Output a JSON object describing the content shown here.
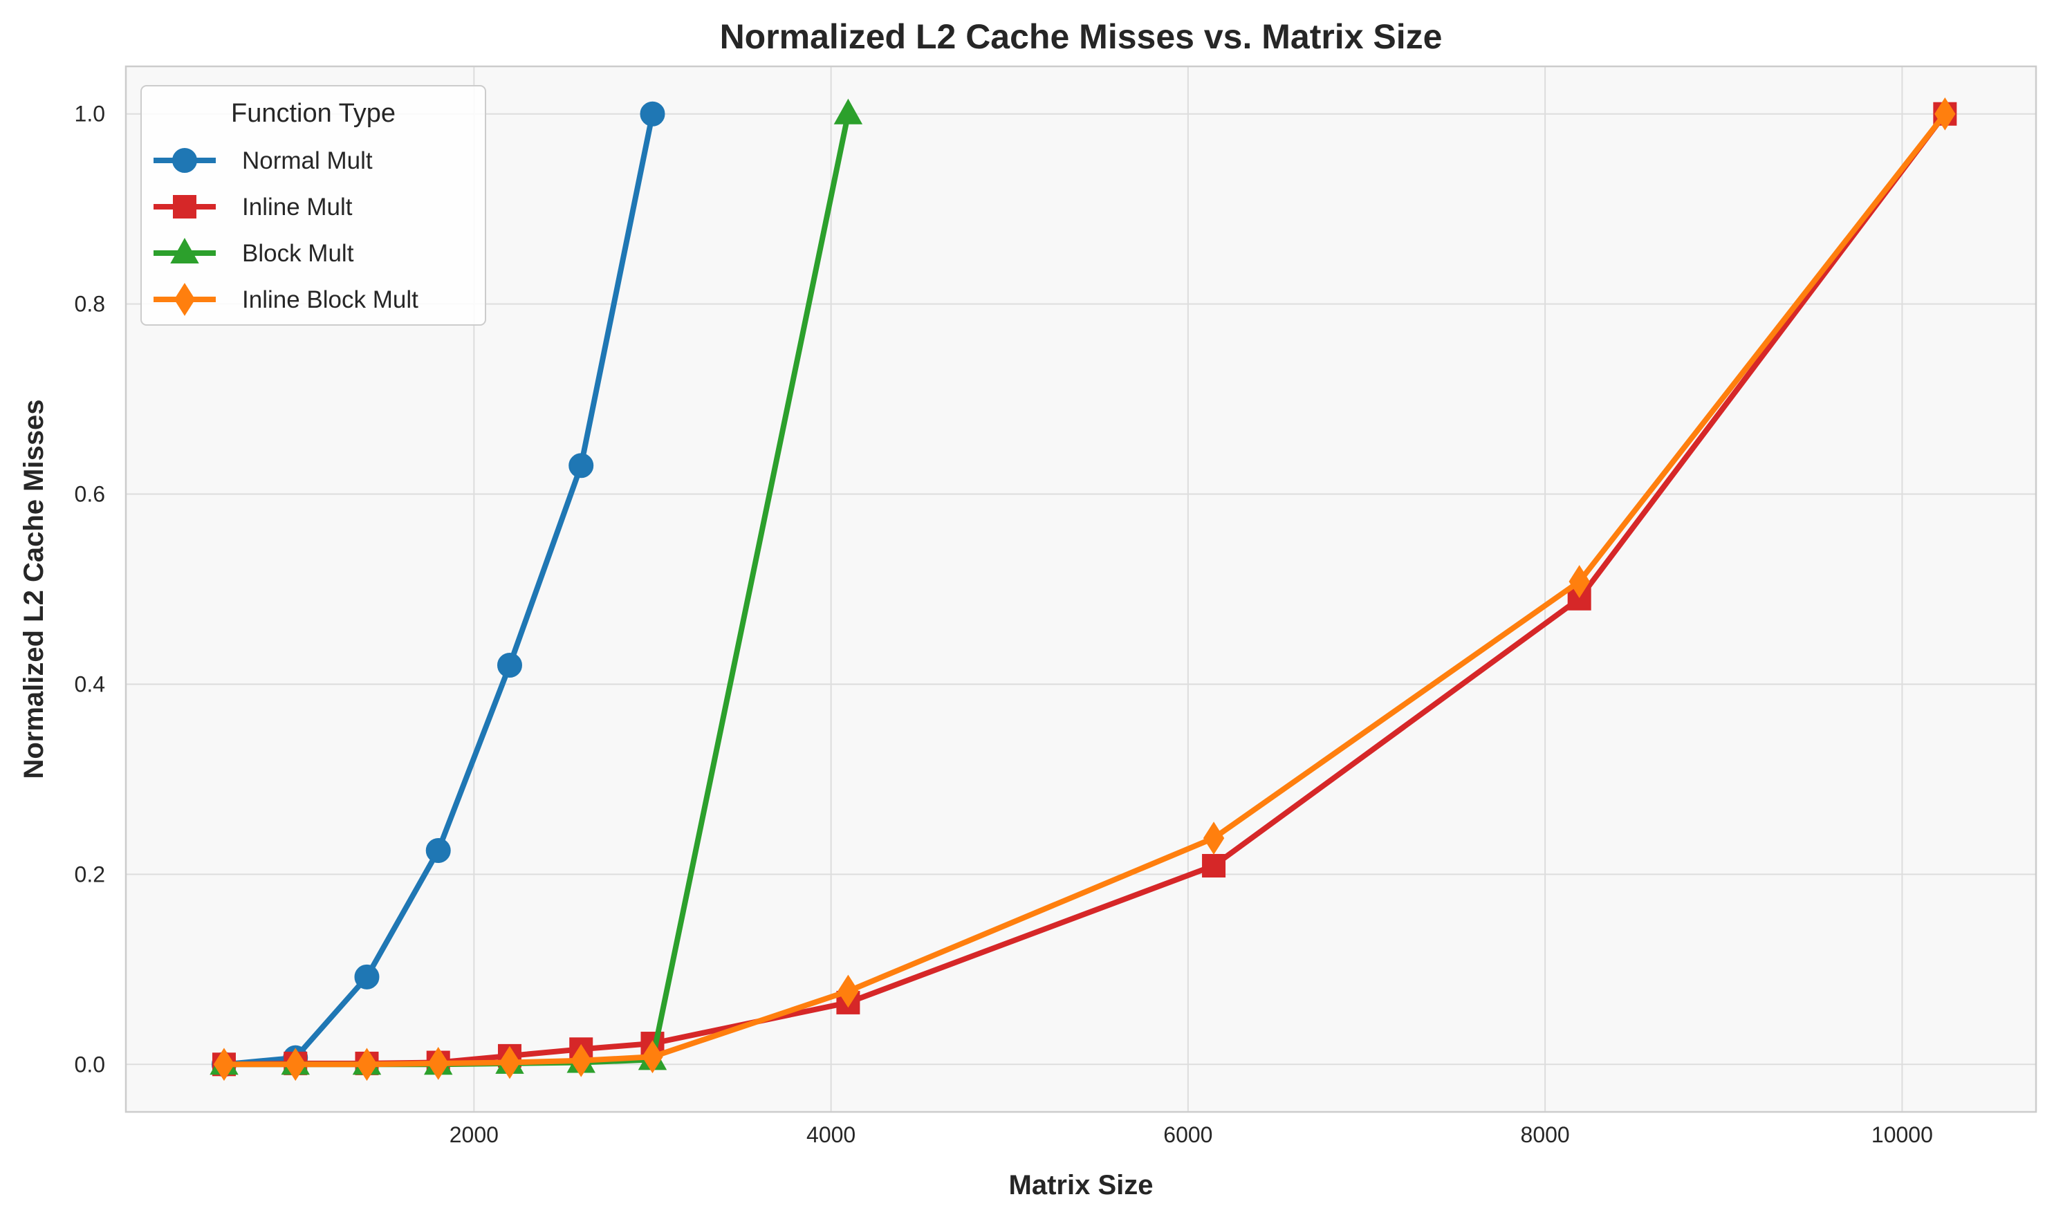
{
  "chart_data": {
    "type": "line",
    "title": "Normalized L2 Cache Misses vs. Matrix Size",
    "xlabel": "Matrix Size",
    "ylabel": "Normalized L2 Cache Misses",
    "xlim": [
      50,
      10750
    ],
    "ylim": [
      -0.05,
      1.05
    ],
    "xticks": [
      2000,
      4000,
      6000,
      8000,
      10000
    ],
    "xtick_labels": [
      "2000",
      "4000",
      "6000",
      "8000",
      "10000"
    ],
    "yticks": [
      0.0,
      0.2,
      0.4,
      0.6,
      0.8,
      1.0
    ],
    "ytick_labels": [
      "0.0",
      "0.2",
      "0.4",
      "0.6",
      "0.8",
      "1.0"
    ],
    "grid": true,
    "legend": {
      "title": "Function Type",
      "placement": "top-left"
    },
    "series": [
      {
        "name": "Normal Mult",
        "color": "#1f77b4",
        "marker": "circle",
        "x": [
          600,
          1000,
          1400,
          1800,
          2200,
          2600,
          3000
        ],
        "y": [
          0.0,
          0.007,
          0.092,
          0.225,
          0.42,
          0.63,
          1.0
        ]
      },
      {
        "name": "Inline Mult",
        "color": "#d62728",
        "marker": "square",
        "x": [
          600,
          1000,
          1400,
          1800,
          2200,
          2600,
          3000,
          4096,
          6144,
          8192,
          10240
        ],
        "y": [
          0.0,
          0.001,
          0.001,
          0.002,
          0.009,
          0.016,
          0.022,
          0.065,
          0.209,
          0.49,
          1.0
        ]
      },
      {
        "name": "Block Mult",
        "color": "#2ca02c",
        "marker": "triangle",
        "x": [
          600,
          1000,
          1400,
          1800,
          2200,
          2600,
          3000,
          4096
        ],
        "y": [
          0.0,
          0.0,
          0.0,
          0.0,
          0.001,
          0.002,
          0.005,
          1.0
        ]
      },
      {
        "name": "Inline Block Mult",
        "color": "#ff7f0e",
        "marker": "diamond",
        "x": [
          600,
          1000,
          1400,
          1800,
          2200,
          2600,
          3000,
          4096,
          6144,
          8192,
          10240
        ],
        "y": [
          0.0,
          0.0,
          0.0,
          0.001,
          0.002,
          0.004,
          0.008,
          0.077,
          0.238,
          0.508,
          1.0
        ]
      }
    ]
  },
  "colors": {
    "plot_background": "#f8f8f8",
    "grid": "#dddddd",
    "frame": "#cccccc"
  }
}
